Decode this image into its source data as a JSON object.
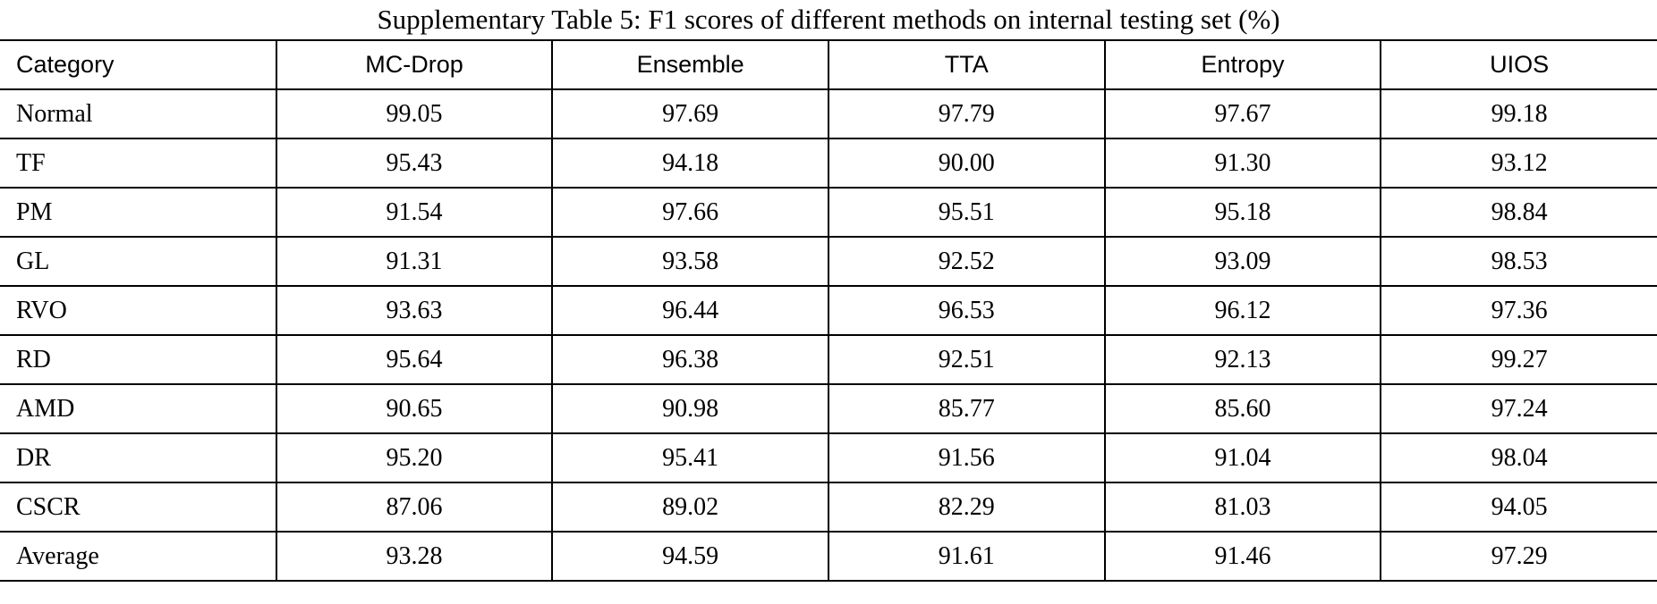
{
  "title": "Supplementary Table 5: F1 scores of different methods on internal testing set (%)",
  "table": {
    "header": [
      "Category",
      "MC-Drop",
      "Ensemble",
      "TTA",
      "Entropy",
      "UIOS"
    ],
    "rows": [
      [
        "Normal",
        "99.05",
        "97.69",
        "97.79",
        "97.67",
        "99.18"
      ],
      [
        "TF",
        "95.43",
        "94.18",
        "90.00",
        "91.30",
        "93.12"
      ],
      [
        "PM",
        "91.54",
        "97.66",
        "95.51",
        "95.18",
        "98.84"
      ],
      [
        "GL",
        "91.31",
        "93.58",
        "92.52",
        "93.09",
        "98.53"
      ],
      [
        "RVO",
        "93.63",
        "96.44",
        "96.53",
        "96.12",
        "97.36"
      ],
      [
        "RD",
        "95.64",
        "96.38",
        "92.51",
        "92.13",
        "99.27"
      ],
      [
        "AMD",
        "90.65",
        "90.98",
        "85.77",
        "85.60",
        "97.24"
      ],
      [
        "DR",
        "95.20",
        "95.41",
        "91.56",
        "91.04",
        "98.04"
      ],
      [
        "CSCR",
        "87.06",
        "89.02",
        "82.29",
        "81.03",
        "94.05"
      ],
      [
        "Average",
        "93.28",
        "94.59",
        "91.61",
        "91.46",
        "97.29"
      ]
    ]
  }
}
